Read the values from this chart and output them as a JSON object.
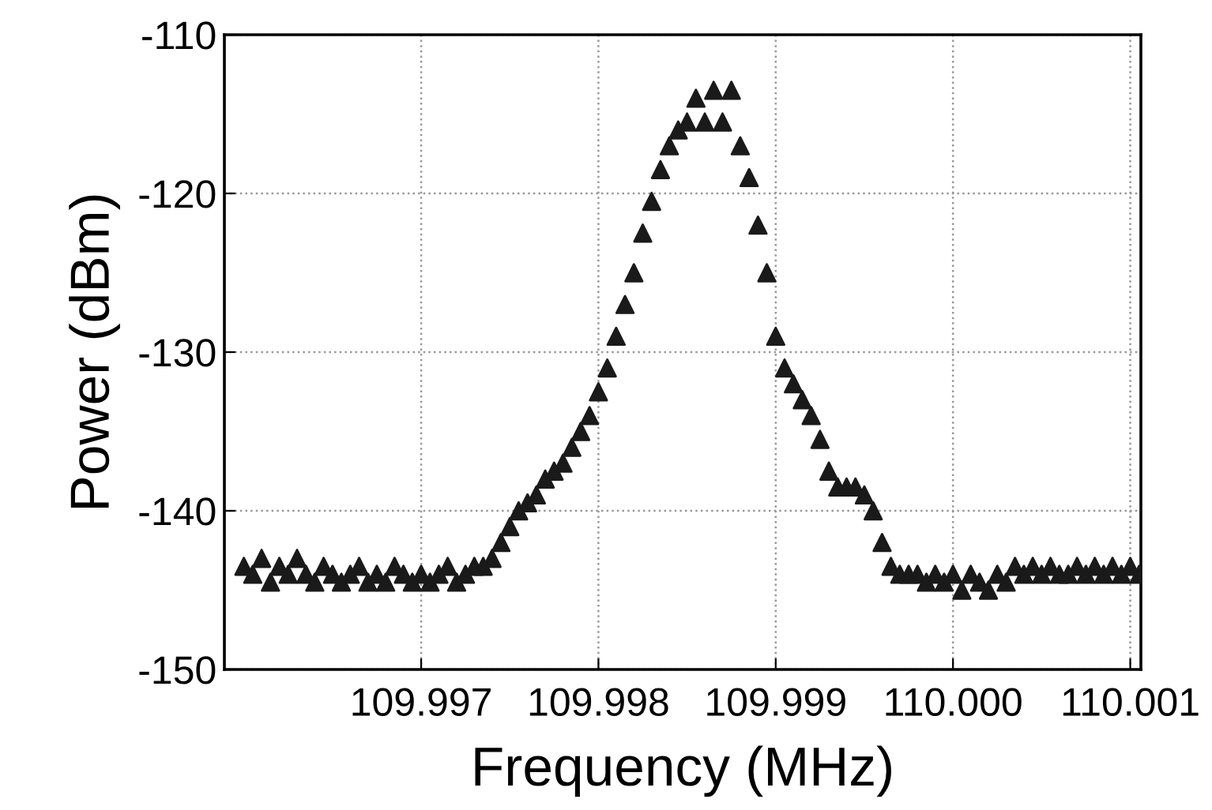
{
  "chart_data": {
    "type": "scatter",
    "xlabel": "Frequency (MHz)",
    "ylabel": "Power (dBm)",
    "x": [
      109.996,
      109.99605,
      109.9961,
      109.99615,
      109.9962,
      109.99625,
      109.9963,
      109.99635,
      109.9964,
      109.99645,
      109.9965,
      109.99655,
      109.9966,
      109.99665,
      109.9967,
      109.99675,
      109.9968,
      109.99685,
      109.9969,
      109.99695,
      109.997,
      109.99705,
      109.9971,
      109.99715,
      109.9972,
      109.99725,
      109.9973,
      109.99735,
      109.9974,
      109.99745,
      109.9975,
      109.99755,
      109.9976,
      109.99765,
      109.9977,
      109.99775,
      109.9978,
      109.99785,
      109.9979,
      109.99795,
      109.998,
      109.99805,
      109.9981,
      109.99815,
      109.9982,
      109.99825,
      109.9983,
      109.99835,
      109.9984,
      109.99845,
      109.9985,
      109.99855,
      109.9986,
      109.99865,
      109.9987,
      109.99875,
      109.9988,
      109.99885,
      109.9989,
      109.99895,
      109.999,
      109.99905,
      109.9991,
      109.99915,
      109.9992,
      109.99925,
      109.9993,
      109.99935,
      109.9994,
      109.99945,
      109.9995,
      109.99955,
      109.9996,
      109.99965,
      109.9997,
      109.99975,
      109.9998,
      109.99985,
      109.9999,
      109.99995,
      110.0,
      110.00005,
      110.0001,
      110.00015,
      110.0002,
      110.00025,
      110.0003,
      110.00035,
      110.0004,
      110.00045,
      110.0005,
      110.00055,
      110.0006,
      110.00065,
      110.0007,
      110.00075,
      110.0008,
      110.00085,
      110.0009,
      110.00095,
      110.001,
      110.00105
    ],
    "series": [
      {
        "color": "#1a1a1a",
        "values": [
          -143.5,
          -144,
          -143,
          -144.5,
          -143.5,
          -144,
          -143,
          -144,
          -144.5,
          -143.5,
          -144,
          -144.5,
          -144,
          -143.5,
          -144.5,
          -144,
          -144.5,
          -143.5,
          -144,
          -144.5,
          -144,
          -144.5,
          -144,
          -143.5,
          -144.5,
          -144,
          -143.5,
          -143.5,
          -143,
          -142,
          -141,
          -140,
          -139.5,
          -139,
          -138,
          -137.5,
          -137,
          -136,
          -135,
          -134,
          -132.5,
          -131,
          -129,
          -127,
          -125,
          -122.5,
          -120.5,
          -118.5,
          -117,
          -116,
          -115.5,
          -114,
          -115.5,
          -113.5,
          -115.5,
          -113.5,
          -117,
          -119,
          -122,
          -125,
          -129,
          -131,
          -132,
          -133,
          -134,
          -135.5,
          -137.5,
          -138.5,
          -138.5,
          -138.5,
          -139,
          -140,
          -142,
          -143.5,
          -144,
          -144,
          -144,
          -144.5,
          -144,
          -144.5,
          -144,
          -145,
          -144,
          -144.5,
          -145,
          -144,
          -144.5,
          -143.5,
          -144,
          -143.5,
          -144,
          -143.5,
          -144,
          -144,
          -143.5,
          -144,
          -143.5,
          -144,
          -143.5,
          -144,
          -143.5,
          -144
        ]
      }
    ],
    "xlim": [
      109.99589,
      110.00106
    ],
    "ylim": [
      -150,
      -110
    ],
    "xticks": [
      {
        "value": 109.997,
        "label": "109.997"
      },
      {
        "value": 109.998,
        "label": "109.998"
      },
      {
        "value": 109.999,
        "label": "109.999"
      },
      {
        "value": 110.0,
        "label": "110.000"
      },
      {
        "value": 110.001,
        "label": "110.001"
      }
    ],
    "yticks": [
      -150,
      -140,
      -130,
      -120,
      -110
    ],
    "grid": true,
    "marker": "triangle"
  }
}
